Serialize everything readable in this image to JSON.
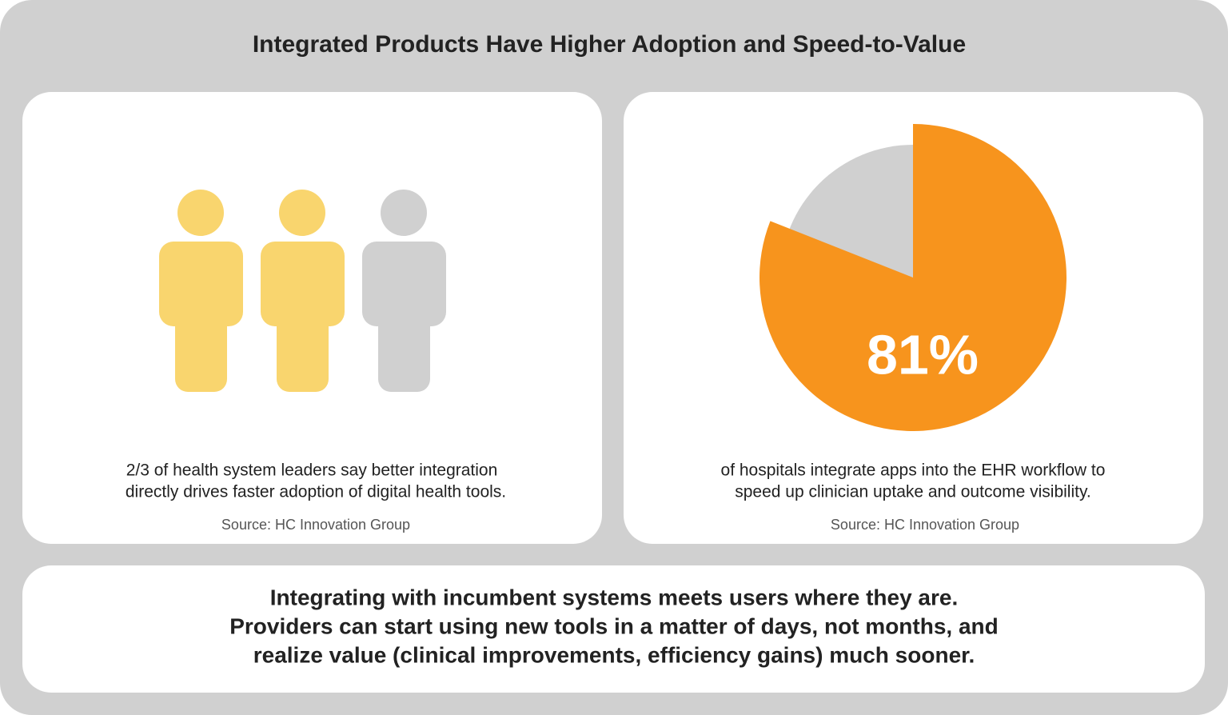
{
  "title": "Integrated Products Have Higher Adoption and Speed-to-Value",
  "panels": [
    {
      "description": [
        "2/3 of health system leaders say better integration",
        "directly drives faster adoption of digital health tools."
      ],
      "source": "Source: HC Innovation Group"
    },
    {
      "description": [
        "of hospitals integrate apps into the EHR workflow to",
        "speed up clinician uptake and outcome visibility."
      ],
      "source": "Source: HC Innovation Group"
    }
  ],
  "chart_data": {
    "type": "pie",
    "values": [
      81
    ],
    "value_labels": [
      "81%"
    ],
    "colors": [
      "#f7941d"
    ]
  },
  "footer": [
    "Integrating with incumbent systems meets users where they are.",
    "Providers can start using new tools in a matter of days, not months, and",
    "realize value (clinical improvements, efficiency gains) much sooner."
  ]
}
